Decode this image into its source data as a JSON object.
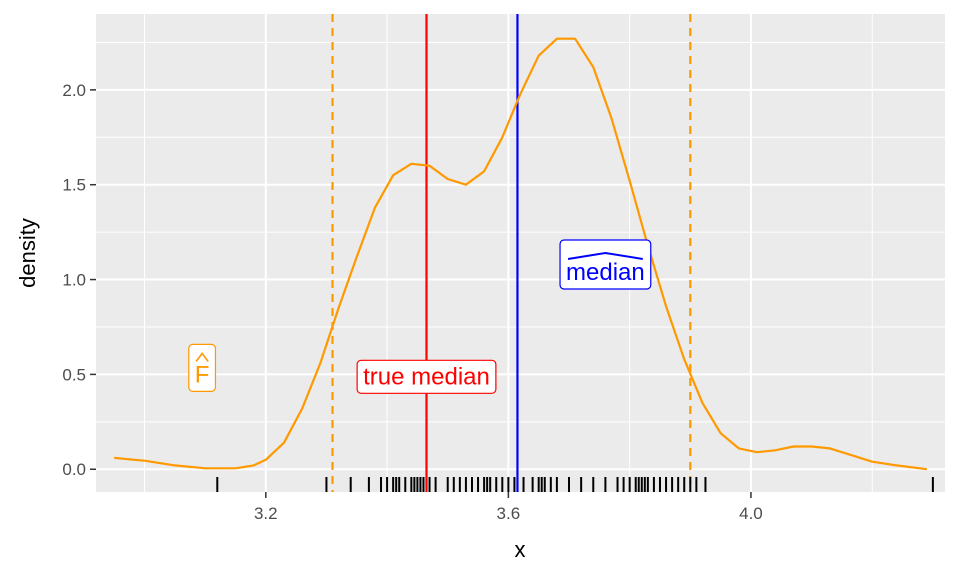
{
  "chart_data": {
    "type": "density",
    "xlabel": "x",
    "ylabel": "density",
    "xlim": [
      2.92,
      4.32
    ],
    "ylim": [
      -0.12,
      2.4
    ],
    "x_ticks": [
      3.2,
      3.6,
      4.0
    ],
    "x_tick_labels": [
      "3.2",
      "3.6",
      "4.0"
    ],
    "y_ticks": [
      0.0,
      0.5,
      1.0,
      1.5,
      2.0
    ],
    "y_tick_labels": [
      "0.0",
      "0.5",
      "1.0",
      "1.5",
      "2.0"
    ],
    "grid": true,
    "density_curve": {
      "color": "#FF9900",
      "points": [
        [
          2.95,
          0.06
        ],
        [
          3.0,
          0.045
        ],
        [
          3.05,
          0.02
        ],
        [
          3.1,
          0.005
        ],
        [
          3.15,
          0.005
        ],
        [
          3.18,
          0.02
        ],
        [
          3.2,
          0.05
        ],
        [
          3.23,
          0.14
        ],
        [
          3.26,
          0.32
        ],
        [
          3.29,
          0.56
        ],
        [
          3.32,
          0.85
        ],
        [
          3.35,
          1.12
        ],
        [
          3.38,
          1.38
        ],
        [
          3.41,
          1.55
        ],
        [
          3.44,
          1.61
        ],
        [
          3.47,
          1.6
        ],
        [
          3.5,
          1.53
        ],
        [
          3.53,
          1.5
        ],
        [
          3.56,
          1.57
        ],
        [
          3.59,
          1.75
        ],
        [
          3.62,
          1.98
        ],
        [
          3.65,
          2.18
        ],
        [
          3.68,
          2.27
        ],
        [
          3.71,
          2.27
        ],
        [
          3.74,
          2.12
        ],
        [
          3.77,
          1.85
        ],
        [
          3.8,
          1.52
        ],
        [
          3.83,
          1.18
        ],
        [
          3.86,
          0.86
        ],
        [
          3.89,
          0.58
        ],
        [
          3.92,
          0.35
        ],
        [
          3.95,
          0.19
        ],
        [
          3.98,
          0.11
        ],
        [
          4.01,
          0.09
        ],
        [
          4.04,
          0.1
        ],
        [
          4.07,
          0.12
        ],
        [
          4.1,
          0.12
        ],
        [
          4.13,
          0.11
        ],
        [
          4.16,
          0.08
        ],
        [
          4.2,
          0.04
        ],
        [
          4.24,
          0.02
        ],
        [
          4.29,
          0.0
        ]
      ]
    },
    "vertical_lines": [
      {
        "x": 3.31,
        "color": "#FF9900",
        "dashed": true
      },
      {
        "x": 3.9,
        "color": "#FF9900",
        "dashed": true
      },
      {
        "x": 3.465,
        "color": "#FF0000",
        "dashed": false
      },
      {
        "x": 3.615,
        "color": "#0000FF",
        "dashed": false
      }
    ],
    "annotations": [
      {
        "text": "F",
        "hat": "caret",
        "x": 3.095,
        "y": 0.5,
        "color": "#FF9900"
      },
      {
        "text": "true median",
        "x": 3.465,
        "y": 0.49,
        "color": "#FF0000"
      },
      {
        "text": "median",
        "hat": "wide",
        "x": 3.76,
        "y": 1.04,
        "color": "#0000FF"
      }
    ],
    "rug": [
      3.12,
      3.3,
      3.34,
      3.37,
      3.39,
      3.4,
      3.41,
      3.415,
      3.42,
      3.43,
      3.44,
      3.445,
      3.45,
      3.455,
      3.46,
      3.47,
      3.48,
      3.5,
      3.51,
      3.52,
      3.53,
      3.54,
      3.55,
      3.56,
      3.565,
      3.57,
      3.58,
      3.59,
      3.6,
      3.61,
      3.625,
      3.64,
      3.65,
      3.655,
      3.66,
      3.67,
      3.68,
      3.7,
      3.72,
      3.74,
      3.76,
      3.78,
      3.79,
      3.8,
      3.81,
      3.815,
      3.82,
      3.825,
      3.83,
      3.84,
      3.85,
      3.86,
      3.87,
      3.88,
      3.89,
      3.9,
      3.91,
      3.925,
      4.3
    ]
  }
}
